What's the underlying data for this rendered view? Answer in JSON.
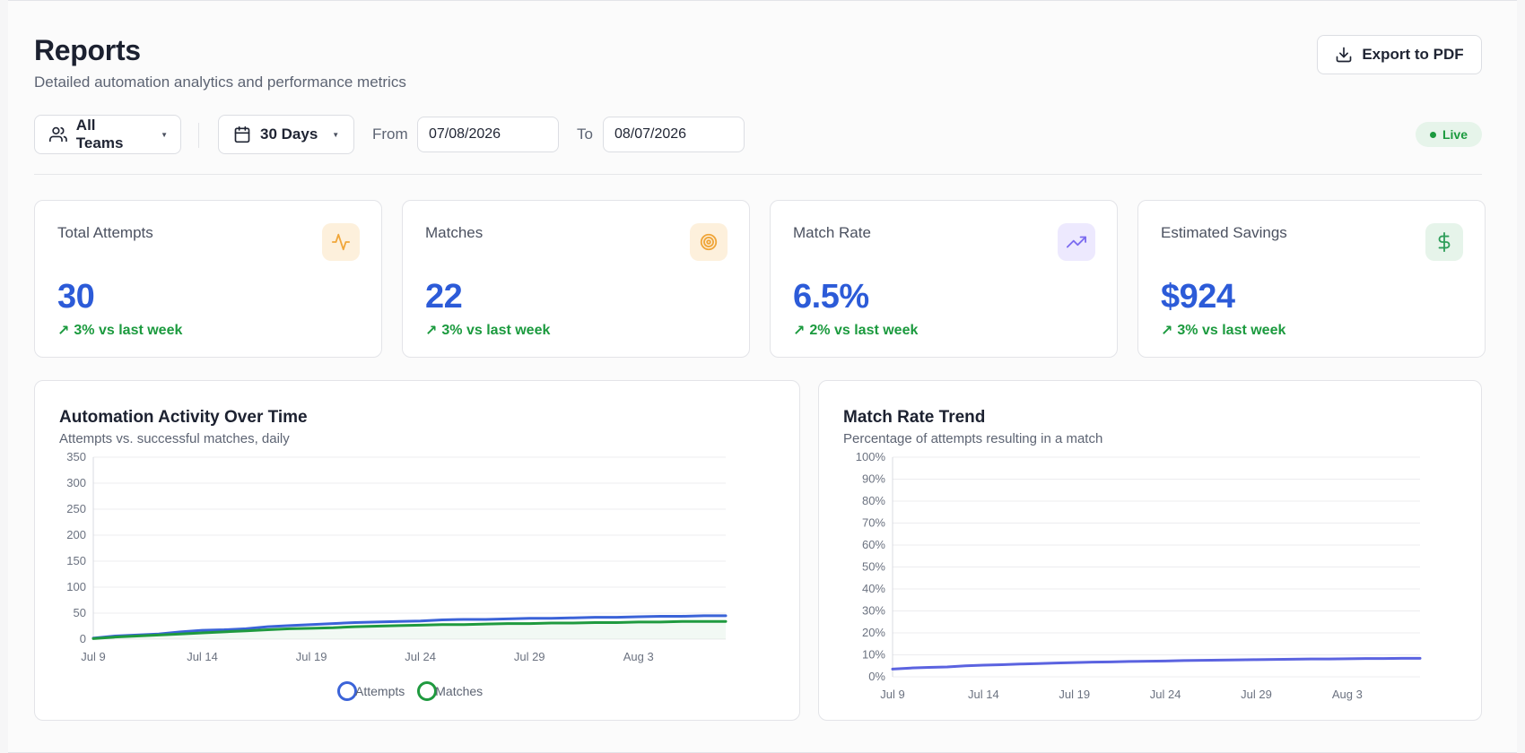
{
  "header": {
    "title": "Reports",
    "subtitle": "Detailed automation analytics and performance metrics",
    "export_label": "Export to PDF"
  },
  "filters": {
    "team": "All Teams",
    "period": "30 Days",
    "from_label": "From",
    "from_value": "07/08/2026",
    "to_label": "To",
    "to_value": "08/07/2026",
    "live_label": "Live"
  },
  "stats": [
    {
      "label": "Total Attempts",
      "value": "30",
      "delta": "3% vs last week",
      "icon": "activity-icon",
      "icon_bg": "#fdf0dc",
      "icon_color": "#f0a63a"
    },
    {
      "label": "Matches",
      "value": "22",
      "delta": "3% vs last week",
      "icon": "target-icon",
      "icon_bg": "#fdf0dc",
      "icon_color": "#f0a63a"
    },
    {
      "label": "Match Rate",
      "value": "6.5%",
      "delta": "2% vs last week",
      "icon": "trending-up-icon",
      "icon_bg": "#ede9fe",
      "icon_color": "#7c6cf0"
    },
    {
      "label": "Estimated Savings",
      "value": "$924",
      "delta": "3% vs last week",
      "icon": "dollar-icon",
      "icon_bg": "#e6f4ea",
      "icon_color": "#2f9e5a"
    }
  ],
  "colors": {
    "accent": "#2c5bd8",
    "positive": "#1b9a3e",
    "attempts": "#3b63d8",
    "matches": "#1f9a3f",
    "rate": "#5b63e0"
  },
  "chart_data": [
    {
      "type": "line",
      "title": "Automation Activity Over Time",
      "subtitle": "Attempts vs. successful matches, daily",
      "x_ticks": [
        "Jul 9",
        "Jul 14",
        "Jul 19",
        "Jul 24",
        "Jul 29",
        "Aug 3"
      ],
      "ylim": [
        0,
        350
      ],
      "y_ticks": [
        "350",
        "300",
        "250",
        "200",
        "150",
        "100",
        "50",
        "0"
      ],
      "grid": true,
      "legend": "bottom",
      "series": [
        {
          "name": "Attempts",
          "values": [
            2,
            6,
            8,
            10,
            14,
            17,
            18,
            20,
            24,
            26,
            28,
            30,
            32,
            33,
            34,
            35,
            37,
            38,
            38,
            39,
            40,
            40,
            41,
            42,
            42,
            43,
            44,
            44,
            45,
            45
          ]
        },
        {
          "name": "Matches",
          "values": [
            1,
            4,
            6,
            8,
            10,
            12,
            14,
            16,
            18,
            20,
            21,
            22,
            24,
            25,
            26,
            27,
            28,
            28,
            29,
            30,
            30,
            31,
            31,
            32,
            32,
            33,
            33,
            34,
            34,
            34
          ]
        }
      ]
    },
    {
      "type": "line",
      "title": "Match Rate Trend",
      "subtitle": "Percentage of attempts resulting in a match",
      "x_ticks": [
        "Jul 9",
        "Jul 14",
        "Jul 19",
        "Jul 24",
        "Jul 29",
        "Aug 3"
      ],
      "ylim": [
        0,
        100
      ],
      "y_ticks": [
        "100%",
        "90%",
        "80%",
        "70%",
        "60%",
        "50%",
        "40%",
        "30%",
        "20%",
        "10%",
        "0%"
      ],
      "grid": true,
      "series": [
        {
          "values": [
            3.5,
            4,
            4.3,
            4.5,
            5,
            5.3,
            5.5,
            5.8,
            6,
            6.3,
            6.5,
            6.7,
            6.8,
            7,
            7.1,
            7.2,
            7.4,
            7.5,
            7.6,
            7.7,
            7.8,
            7.9,
            8,
            8.1,
            8.1,
            8.2,
            8.3,
            8.3,
            8.4,
            8.4
          ]
        }
      ]
    }
  ]
}
